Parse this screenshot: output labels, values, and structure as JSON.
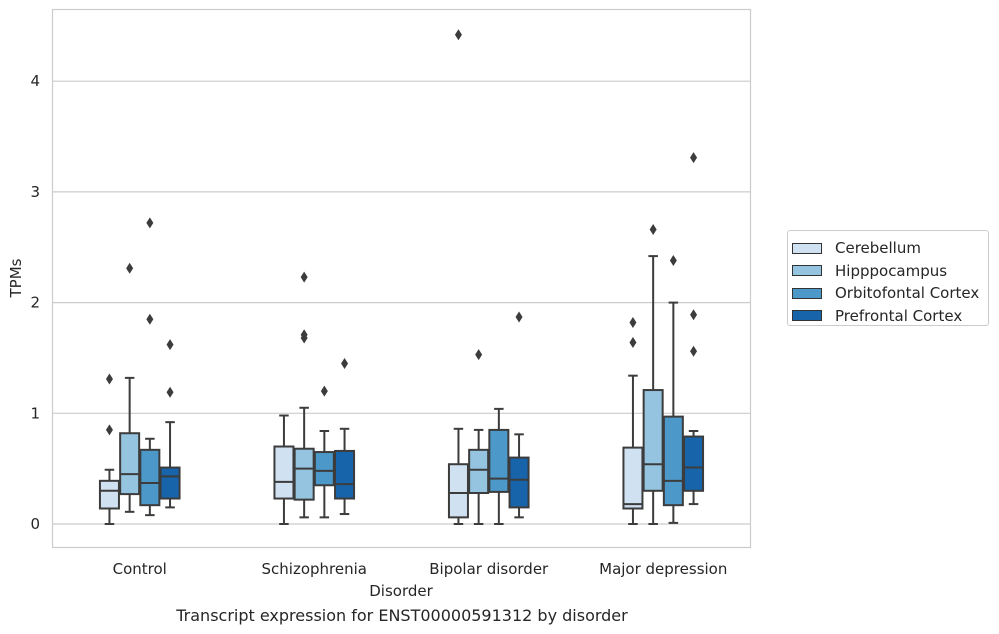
{
  "caption": "Transcript expression for ENST00000591312 by disorder",
  "legend": {
    "items": [
      {
        "label": "Cerebellum",
        "color": "#d0e1f2"
      },
      {
        "label": "Hipppocampus",
        "color": "#94c4df"
      },
      {
        "label": "Orbitofontal Cortex",
        "color": "#4b98c9"
      },
      {
        "label": "Prefrontal Cortex",
        "color": "#1764ab"
      }
    ],
    "placement": "right-center, outside plot"
  },
  "chart_data": {
    "type": "box",
    "xlabel": "Disorder",
    "ylabel": "TPMs",
    "categories": [
      "Control",
      "Schizophrenia",
      "Bipolar disorder",
      "Major depression"
    ],
    "yticks": [
      0,
      1,
      2,
      3,
      4
    ],
    "ylim": [
      -0.22,
      4.65
    ],
    "grid": "horizontal",
    "series": [
      {
        "name": "Cerebellum",
        "color": "#d0e1f2",
        "boxes": [
          {
            "whislo": 0.0,
            "q1": 0.14,
            "med": 0.3,
            "q3": 0.39,
            "whishi": 0.49,
            "fliers": [
              0.85,
              1.31
            ]
          },
          {
            "whislo": 0.0,
            "q1": 0.23,
            "med": 0.38,
            "q3": 0.7,
            "whishi": 0.98,
            "fliers": []
          },
          {
            "whislo": 0.0,
            "q1": 0.06,
            "med": 0.28,
            "q3": 0.54,
            "whishi": 0.86,
            "fliers": [
              4.42
            ]
          },
          {
            "whislo": 0.0,
            "q1": 0.14,
            "med": 0.18,
            "q3": 0.69,
            "whishi": 1.34,
            "fliers": [
              1.64,
              1.82
            ]
          }
        ]
      },
      {
        "name": "Hipppocampus",
        "color": "#94c4df",
        "boxes": [
          {
            "whislo": 0.11,
            "q1": 0.27,
            "med": 0.45,
            "q3": 0.82,
            "whishi": 1.32,
            "fliers": [
              2.31
            ]
          },
          {
            "whislo": 0.06,
            "q1": 0.22,
            "med": 0.5,
            "q3": 0.68,
            "whishi": 1.05,
            "fliers": [
              1.68,
              1.71,
              2.23
            ]
          },
          {
            "whislo": 0.0,
            "q1": 0.28,
            "med": 0.49,
            "q3": 0.67,
            "whishi": 0.85,
            "fliers": [
              1.53
            ]
          },
          {
            "whislo": 0.0,
            "q1": 0.3,
            "med": 0.54,
            "q3": 1.21,
            "whishi": 2.42,
            "fliers": [
              2.66
            ]
          }
        ]
      },
      {
        "name": "Orbitofontal Cortex",
        "color": "#4b98c9",
        "boxes": [
          {
            "whislo": 0.08,
            "q1": 0.17,
            "med": 0.37,
            "q3": 0.67,
            "whishi": 0.77,
            "fliers": [
              1.85,
              2.72
            ]
          },
          {
            "whislo": 0.06,
            "q1": 0.35,
            "med": 0.48,
            "q3": 0.65,
            "whishi": 0.84,
            "fliers": [
              1.2
            ]
          },
          {
            "whislo": 0.0,
            "q1": 0.29,
            "med": 0.41,
            "q3": 0.85,
            "whishi": 1.04,
            "fliers": []
          },
          {
            "whislo": 0.01,
            "q1": 0.17,
            "med": 0.39,
            "q3": 0.97,
            "whishi": 2.0,
            "fliers": [
              2.38
            ]
          }
        ]
      },
      {
        "name": "Prefrontal Cortex",
        "color": "#1764ab",
        "boxes": [
          {
            "whislo": 0.15,
            "q1": 0.23,
            "med": 0.43,
            "q3": 0.51,
            "whishi": 0.92,
            "fliers": [
              1.19,
              1.62
            ]
          },
          {
            "whislo": 0.09,
            "q1": 0.23,
            "med": 0.36,
            "q3": 0.66,
            "whishi": 0.86,
            "fliers": [
              1.45
            ]
          },
          {
            "whislo": 0.06,
            "q1": 0.15,
            "med": 0.4,
            "q3": 0.6,
            "whishi": 0.81,
            "fliers": [
              1.87
            ]
          },
          {
            "whislo": 0.18,
            "q1": 0.3,
            "med": 0.51,
            "q3": 0.79,
            "whishi": 0.84,
            "fliers": [
              1.56,
              1.89,
              3.31
            ]
          }
        ]
      }
    ]
  }
}
